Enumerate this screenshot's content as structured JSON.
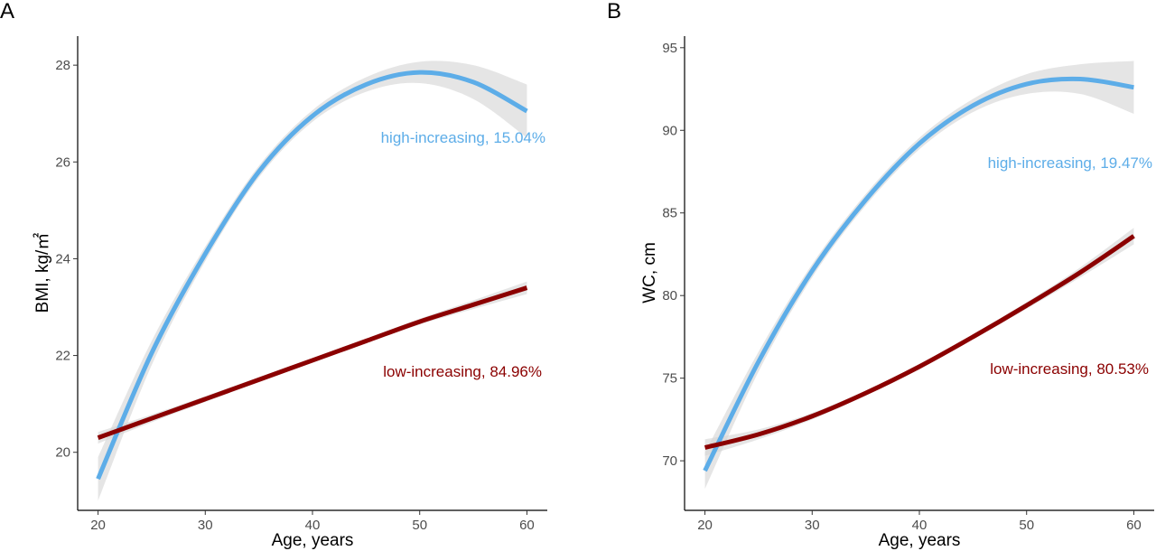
{
  "chart_data": [
    {
      "type": "line",
      "panel_label": "A",
      "xlabel": "Age, years",
      "ylabel": "BMI, kg/㎡",
      "xlim": [
        18.1,
        61.9
      ],
      "ylim": [
        18.8,
        28.6
      ],
      "xticks": [
        20,
        30,
        40,
        50,
        60
      ],
      "yticks": [
        20,
        22,
        24,
        26,
        28
      ],
      "grid": false,
      "x": [
        20,
        25,
        30,
        35,
        40,
        45,
        50,
        55,
        60
      ],
      "series": [
        {
          "name": "high-increasing, 15.04%",
          "color": "#5dade8",
          "values": [
            19.45,
            22.05,
            24.1,
            25.8,
            26.95,
            27.6,
            27.85,
            27.65,
            27.05
          ],
          "ci_halfwidth": [
            0.45,
            0.25,
            0.15,
            0.12,
            0.12,
            0.15,
            0.22,
            0.35,
            0.55
          ]
        },
        {
          "name": "low-increasing, 84.96%",
          "color": "#8b0000",
          "values": [
            20.3,
            20.7,
            21.1,
            21.5,
            21.9,
            22.3,
            22.7,
            23.05,
            23.4
          ],
          "ci_halfwidth": [
            0.12,
            0.08,
            0.06,
            0.05,
            0.05,
            0.05,
            0.06,
            0.09,
            0.13
          ]
        }
      ]
    },
    {
      "type": "line",
      "panel_label": "B",
      "xlabel": "Age, years",
      "ylabel": "WC, cm",
      "xlim": [
        18.1,
        61.9
      ],
      "ylim": [
        67,
        95.7
      ],
      "xticks": [
        20,
        30,
        40,
        50,
        60
      ],
      "yticks": [
        70,
        75,
        80,
        85,
        90,
        95
      ],
      "grid": false,
      "x": [
        20,
        25,
        30,
        35,
        40,
        45,
        50,
        55,
        60
      ],
      "series": [
        {
          "name": "high-increasing, 19.47%",
          "color": "#5dade8",
          "values": [
            69.4,
            76.0,
            81.5,
            85.8,
            89.2,
            91.5,
            92.8,
            93.1,
            92.6
          ],
          "ci_halfwidth": [
            1.1,
            0.6,
            0.4,
            0.35,
            0.35,
            0.4,
            0.6,
            0.9,
            1.6
          ]
        },
        {
          "name": "low-increasing, 80.53%",
          "color": "#8b0000",
          "values": [
            70.8,
            71.6,
            72.7,
            74.1,
            75.7,
            77.5,
            79.4,
            81.4,
            83.6
          ],
          "ci_halfwidth": [
            0.5,
            0.3,
            0.2,
            0.15,
            0.15,
            0.15,
            0.2,
            0.3,
            0.5
          ]
        }
      ]
    }
  ]
}
